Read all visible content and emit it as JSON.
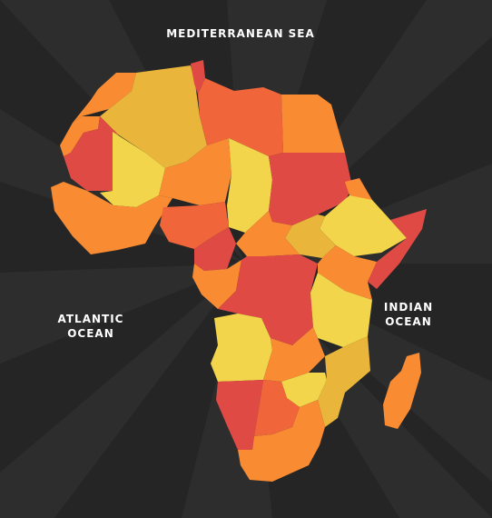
{
  "labels": {
    "mediterranean": "MEDITERRANEAN SEA",
    "atlantic": [
      "ATLANTIC",
      "OCEAN"
    ],
    "indian": [
      "INDIAN",
      "OCEAN"
    ]
  },
  "colors": {
    "background": "#252525",
    "rays": "#2d2d2d",
    "red": "#e04a45",
    "dark_orange": "#f0653a",
    "orange": "#f98b33",
    "gold": "#e9b63b",
    "yellow": "#f2d54a"
  },
  "regions": [
    {
      "name": "morocco",
      "color": "orange"
    },
    {
      "name": "western-sahara",
      "color": "orange"
    },
    {
      "name": "algeria",
      "color": "gold"
    },
    {
      "name": "tunisia",
      "color": "red"
    },
    {
      "name": "libya",
      "color": "dark_orange"
    },
    {
      "name": "egypt",
      "color": "orange"
    },
    {
      "name": "mauritania",
      "color": "red"
    },
    {
      "name": "mali",
      "color": "yellow"
    },
    {
      "name": "niger",
      "color": "orange"
    },
    {
      "name": "chad",
      "color": "yellow"
    },
    {
      "name": "sudan",
      "color": "red"
    },
    {
      "name": "eritrea",
      "color": "orange"
    },
    {
      "name": "ethiopia",
      "color": "yellow"
    },
    {
      "name": "somalia",
      "color": "red"
    },
    {
      "name": "south-sudan",
      "color": "gold"
    },
    {
      "name": "nigeria",
      "color": "dark_orange"
    },
    {
      "name": "west-coast",
      "color": "orange"
    },
    {
      "name": "cameroon",
      "color": "red"
    },
    {
      "name": "car",
      "color": "orange"
    },
    {
      "name": "drc",
      "color": "red"
    },
    {
      "name": "congo-gabon",
      "color": "orange"
    },
    {
      "name": "kenya",
      "color": "orange"
    },
    {
      "name": "tanzania",
      "color": "yellow"
    },
    {
      "name": "angola",
      "color": "yellow"
    },
    {
      "name": "zambia",
      "color": "orange"
    },
    {
      "name": "mozambique",
      "color": "gold"
    },
    {
      "name": "zimbabwe",
      "color": "yellow"
    },
    {
      "name": "namibia",
      "color": "red"
    },
    {
      "name": "botswana",
      "color": "dark_orange"
    },
    {
      "name": "south-africa",
      "color": "orange"
    },
    {
      "name": "madagascar",
      "color": "orange"
    }
  ]
}
